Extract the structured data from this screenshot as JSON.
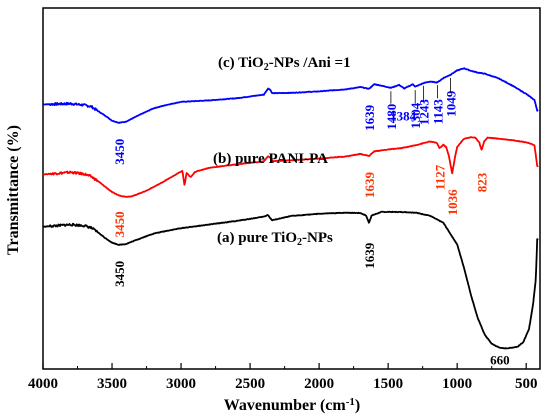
{
  "chart_data": {
    "type": "line",
    "xlabel": "Wavenumber (cm⁻¹)",
    "ylabel": "Transmittance (%)",
    "xlim": [
      4000,
      400
    ],
    "x_reversed": true,
    "ylim": [
      0,
      1
    ],
    "x_ticks": [
      "4000",
      "3500",
      "3000",
      "2500",
      "2000",
      "1500",
      "1000",
      "500"
    ],
    "grid": false,
    "legend": "none",
    "series": [
      {
        "name": "(c) TiO2-NPs /Ani =1",
        "color": "#0000ff",
        "label_color": "#000000",
        "points": [
          [
            4000,
            0.733
          ],
          [
            3800,
            0.735
          ],
          [
            3700,
            0.731
          ],
          [
            3650,
            0.727
          ],
          [
            3600,
            0.714
          ],
          [
            3550,
            0.702
          ],
          [
            3500,
            0.688
          ],
          [
            3450,
            0.682
          ],
          [
            3400,
            0.685
          ],
          [
            3300,
            0.704
          ],
          [
            3200,
            0.722
          ],
          [
            3100,
            0.732
          ],
          [
            3000,
            0.74
          ],
          [
            2800,
            0.744
          ],
          [
            2600,
            0.75
          ],
          [
            2400,
            0.76
          ],
          [
            2370,
            0.777
          ],
          [
            2355,
            0.774
          ],
          [
            2340,
            0.764
          ],
          [
            2200,
            0.765
          ],
          [
            2000,
            0.769
          ],
          [
            1800,
            0.775
          ],
          [
            1700,
            0.781
          ],
          [
            1639,
            0.776
          ],
          [
            1600,
            0.789
          ],
          [
            1480,
            0.779
          ],
          [
            1420,
            0.787
          ],
          [
            1384,
            0.777
          ],
          [
            1320,
            0.789
          ],
          [
            1304,
            0.782
          ],
          [
            1243,
            0.792
          ],
          [
            1200,
            0.796
          ],
          [
            1143,
            0.794
          ],
          [
            1100,
            0.806
          ],
          [
            1049,
            0.815
          ],
          [
            1000,
            0.827
          ],
          [
            950,
            0.833
          ],
          [
            900,
            0.826
          ],
          [
            850,
            0.821
          ],
          [
            800,
            0.818
          ],
          [
            700,
            0.805
          ],
          [
            600,
            0.785
          ],
          [
            500,
            0.762
          ],
          [
            440,
            0.745
          ],
          [
            420,
            0.716
          ]
        ]
      },
      {
        "name": "(b) pure PANI-PA",
        "color": "#ff0000",
        "label_color": "#000000",
        "points": [
          [
            4000,
            0.539
          ],
          [
            3800,
            0.545
          ],
          [
            3700,
            0.54
          ],
          [
            3650,
            0.533
          ],
          [
            3600,
            0.52
          ],
          [
            3550,
            0.505
          ],
          [
            3500,
            0.49
          ],
          [
            3450,
            0.481
          ],
          [
            3400,
            0.477
          ],
          [
            3350,
            0.479
          ],
          [
            3250,
            0.494
          ],
          [
            3150,
            0.514
          ],
          [
            3050,
            0.536
          ],
          [
            2990,
            0.549
          ],
          [
            2975,
            0.508
          ],
          [
            2960,
            0.543
          ],
          [
            2930,
            0.531
          ],
          [
            2900,
            0.546
          ],
          [
            2800,
            0.557
          ],
          [
            2600,
            0.567
          ],
          [
            2400,
            0.575
          ],
          [
            2370,
            0.589
          ],
          [
            2355,
            0.586
          ],
          [
            2340,
            0.576
          ],
          [
            2200,
            0.578
          ],
          [
            2000,
            0.583
          ],
          [
            1800,
            0.589
          ],
          [
            1700,
            0.596
          ],
          [
            1639,
            0.59
          ],
          [
            1600,
            0.603
          ],
          [
            1500,
            0.608
          ],
          [
            1400,
            0.612
          ],
          [
            1300,
            0.62
          ],
          [
            1200,
            0.63
          ],
          [
            1150,
            0.627
          ],
          [
            1127,
            0.612
          ],
          [
            1100,
            0.621
          ],
          [
            1080,
            0.615
          ],
          [
            1060,
            0.59
          ],
          [
            1036,
            0.542
          ],
          [
            1015,
            0.588
          ],
          [
            1000,
            0.615
          ],
          [
            950,
            0.638
          ],
          [
            900,
            0.642
          ],
          [
            870,
            0.641
          ],
          [
            840,
            0.628
          ],
          [
            823,
            0.606
          ],
          [
            805,
            0.63
          ],
          [
            780,
            0.641
          ],
          [
            700,
            0.638
          ],
          [
            600,
            0.634
          ],
          [
            500,
            0.628
          ],
          [
            440,
            0.62
          ],
          [
            420,
            0.562
          ]
        ]
      },
      {
        "name": "(a) pure TiO2-NPs",
        "color": "#000000",
        "label_color": "#000000",
        "points": [
          [
            4000,
            0.394
          ],
          [
            3800,
            0.4
          ],
          [
            3700,
            0.397
          ],
          [
            3650,
            0.391
          ],
          [
            3600,
            0.378
          ],
          [
            3550,
            0.363
          ],
          [
            3500,
            0.35
          ],
          [
            3450,
            0.344
          ],
          [
            3400,
            0.346
          ],
          [
            3300,
            0.361
          ],
          [
            3200,
            0.375
          ],
          [
            3100,
            0.383
          ],
          [
            3000,
            0.39
          ],
          [
            2800,
            0.4
          ],
          [
            2600,
            0.41
          ],
          [
            2400,
            0.422
          ],
          [
            2370,
            0.427
          ],
          [
            2355,
            0.418
          ],
          [
            2340,
            0.412
          ],
          [
            2200,
            0.424
          ],
          [
            2000,
            0.43
          ],
          [
            1800,
            0.433
          ],
          [
            1700,
            0.432
          ],
          [
            1660,
            0.425
          ],
          [
            1639,
            0.405
          ],
          [
            1620,
            0.425
          ],
          [
            1550,
            0.435
          ],
          [
            1400,
            0.435
          ],
          [
            1300,
            0.433
          ],
          [
            1200,
            0.425
          ],
          [
            1100,
            0.405
          ],
          [
            1000,
            0.345
          ],
          [
            950,
            0.28
          ],
          [
            900,
            0.205
          ],
          [
            850,
            0.14
          ],
          [
            800,
            0.095
          ],
          [
            750,
            0.07
          ],
          [
            700,
            0.06
          ],
          [
            660,
            0.057
          ],
          [
            620,
            0.058
          ],
          [
            560,
            0.062
          ],
          [
            520,
            0.075
          ],
          [
            480,
            0.11
          ],
          [
            450,
            0.18
          ],
          [
            430,
            0.25
          ],
          [
            420,
            0.36
          ]
        ]
      }
    ],
    "annotations": [
      {
        "text": "3450",
        "x": 3450,
        "series": "(c) TiO2-NPs /Ani =1",
        "color": "#0000ff",
        "rotate": true
      },
      {
        "text": "1639",
        "x": 1639,
        "series": "(c) TiO2-NPs /Ani =1",
        "color": "#0000ff",
        "rotate": true
      },
      {
        "text": "1480",
        "x": 1480,
        "series": "(c) TiO2-NPs /Ani =1",
        "color": "#0000ff",
        "rotate": true
      },
      {
        "text": "1384",
        "x": 1384,
        "series": "(c) TiO2-NPs /Ani =1",
        "color": "#0000ff",
        "rotate": false
      },
      {
        "text": "1304",
        "x": 1304,
        "series": "(c) TiO2-NPs /Ani =1",
        "color": "#0000ff",
        "rotate": true
      },
      {
        "text": "1243",
        "x": 1243,
        "series": "(c) TiO2-NPs /Ani =1",
        "color": "#0000ff",
        "rotate": true
      },
      {
        "text": "1143",
        "x": 1143,
        "series": "(c) TiO2-NPs /Ani =1",
        "color": "#0000ff",
        "rotate": true
      },
      {
        "text": "1049",
        "x": 1049,
        "series": "(c) TiO2-NPs /Ani =1",
        "color": "#0000ff",
        "rotate": true
      },
      {
        "text": "3450",
        "x": 3450,
        "series": "(b) pure PANI-PA",
        "color": "#ff3300",
        "rotate": true
      },
      {
        "text": "1639",
        "x": 1639,
        "series": "(b) pure PANI-PA",
        "color": "#ff3300",
        "rotate": true
      },
      {
        "text": "1127",
        "x": 1127,
        "series": "(b) pure PANI-PA",
        "color": "#ff3300",
        "rotate": true
      },
      {
        "text": "1036",
        "x": 1036,
        "series": "(b) pure PANI-PA",
        "color": "#ff3300",
        "rotate": true
      },
      {
        "text": "823",
        "x": 823,
        "series": "(b) pure PANI-PA",
        "color": "#ff3300",
        "rotate": true
      },
      {
        "text": "3450",
        "x": 3450,
        "series": "(a) pure TiO2-NPs",
        "color": "#000000",
        "rotate": true
      },
      {
        "text": "1639",
        "x": 1639,
        "series": "(a) pure TiO2-NPs",
        "color": "#000000",
        "rotate": true
      },
      {
        "text": "660",
        "x": 660,
        "series": "(a) pure TiO2-NPs",
        "color": "#000000",
        "rotate": false
      }
    ]
  }
}
